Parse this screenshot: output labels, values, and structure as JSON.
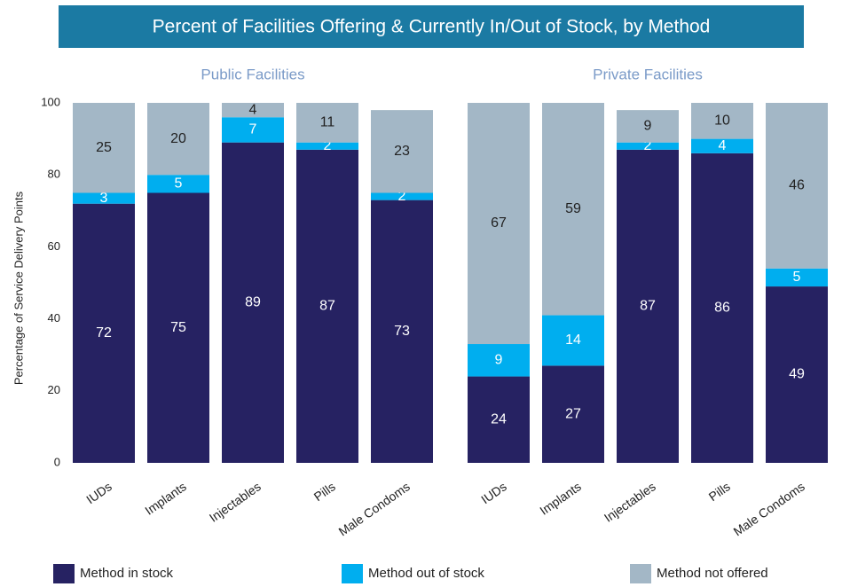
{
  "chart_data": [
    {
      "type": "bar",
      "stacked": true,
      "title": "Percent of Facilities Offering & Currently In/Out of Stock, by Method",
      "subtitle": "Public Facilities",
      "y_label": "Percentage of Service Delivery Points",
      "categories": [
        "IUDs",
        "Implants",
        "Injectables",
        "Pills",
        "Male Condoms"
      ],
      "series": [
        {
          "name": "Method in stock",
          "color": "#262262",
          "values": [
            72,
            75,
            89,
            87,
            73
          ]
        },
        {
          "name": "Method out of stock",
          "color": "#00aeef",
          "values": [
            3,
            5,
            7,
            2,
            2
          ]
        },
        {
          "name": "Method not offered",
          "color": "#a3b7c6",
          "values": [
            25,
            20,
            4,
            11,
            23
          ]
        }
      ],
      "ylim": [
        0,
        100
      ],
      "yticks": [
        0,
        20,
        40,
        60,
        80,
        100
      ]
    },
    {
      "type": "bar",
      "stacked": true,
      "subtitle": "Private Facilities",
      "categories": [
        "IUDs",
        "Implants",
        "Injectables",
        "Pills",
        "Male Condoms"
      ],
      "series": [
        {
          "color": "#262262",
          "values": [
            24,
            27,
            87,
            86,
            49
          ]
        },
        {
          "color": "#00aeef",
          "values": [
            9,
            14,
            2,
            4,
            5
          ]
        },
        {
          "color": "#a3b7c6",
          "values": [
            67,
            59,
            9,
            10,
            46
          ]
        }
      ],
      "ylim": [
        0,
        100
      ]
    }
  ]
}
